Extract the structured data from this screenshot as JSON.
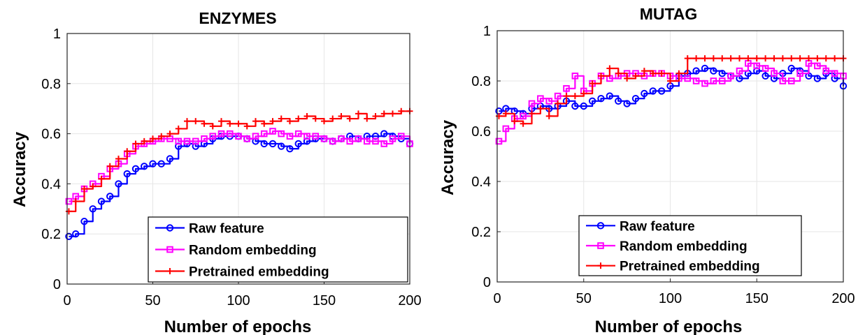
{
  "colors": {
    "raw": "#0000ff",
    "random": "#ff00ff",
    "pretrained": "#ff0000",
    "grid": "#e6e6e6",
    "axis": "#262626"
  },
  "chart_data": [
    {
      "type": "line",
      "title": "ENZYMES",
      "xlabel": "Number of epochs",
      "ylabel": "Accuracy",
      "xlim": [
        0,
        200
      ],
      "ylim": [
        0,
        1
      ],
      "xticks": [
        0,
        50,
        100,
        150,
        200
      ],
      "yticks": [
        0,
        0.2,
        0.4,
        0.6,
        0.8,
        1
      ],
      "ytick_labels": [
        "0",
        "0.2",
        "0.4",
        "0.6",
        "0.8",
        "1"
      ],
      "grid": true,
      "legend_position": "bottom-right",
      "x": [
        1,
        5,
        10,
        15,
        20,
        25,
        30,
        35,
        40,
        45,
        50,
        55,
        60,
        65,
        70,
        75,
        80,
        85,
        90,
        95,
        100,
        105,
        110,
        115,
        120,
        125,
        130,
        135,
        140,
        145,
        150,
        155,
        160,
        165,
        170,
        175,
        180,
        185,
        190,
        195,
        200
      ],
      "series": [
        {
          "name": "Raw feature",
          "marker": "o",
          "color_key": "raw",
          "values": [
            0.19,
            0.2,
            0.25,
            0.3,
            0.33,
            0.35,
            0.4,
            0.44,
            0.46,
            0.47,
            0.48,
            0.48,
            0.5,
            0.55,
            0.56,
            0.55,
            0.56,
            0.58,
            0.59,
            0.59,
            0.59,
            0.58,
            0.57,
            0.56,
            0.56,
            0.55,
            0.54,
            0.56,
            0.57,
            0.58,
            0.58,
            0.57,
            0.58,
            0.59,
            0.58,
            0.59,
            0.59,
            0.6,
            0.59,
            0.58,
            0.56
          ]
        },
        {
          "name": "Random embedding",
          "marker": "s",
          "color_key": "random",
          "values": [
            0.33,
            0.35,
            0.38,
            0.4,
            0.43,
            0.46,
            0.48,
            0.52,
            0.55,
            0.56,
            0.57,
            0.58,
            0.58,
            0.57,
            0.57,
            0.57,
            0.58,
            0.59,
            0.6,
            0.6,
            0.59,
            0.58,
            0.59,
            0.6,
            0.61,
            0.6,
            0.59,
            0.6,
            0.59,
            0.59,
            0.58,
            0.57,
            0.58,
            0.57,
            0.58,
            0.57,
            0.57,
            0.56,
            0.58,
            0.59,
            0.56
          ]
        },
        {
          "name": "Pretrained embedding",
          "marker": "+",
          "color_key": "pretrained",
          "values": [
            0.29,
            0.33,
            0.38,
            0.39,
            0.42,
            0.47,
            0.5,
            0.53,
            0.56,
            0.57,
            0.58,
            0.59,
            0.6,
            0.62,
            0.65,
            0.65,
            0.64,
            0.63,
            0.65,
            0.64,
            0.64,
            0.63,
            0.65,
            0.64,
            0.65,
            0.66,
            0.65,
            0.66,
            0.67,
            0.66,
            0.65,
            0.66,
            0.67,
            0.66,
            0.68,
            0.66,
            0.67,
            0.68,
            0.68,
            0.69,
            0.69
          ]
        }
      ]
    },
    {
      "type": "line",
      "title": "MUTAG",
      "xlabel": "Number of epochs",
      "ylabel": "Accuracy",
      "xlim": [
        0,
        200
      ],
      "ylim": [
        0,
        1
      ],
      "xticks": [
        0,
        50,
        100,
        150,
        200
      ],
      "yticks": [
        0,
        0.2,
        0.4,
        0.6,
        0.8,
        1
      ],
      "ytick_labels": [
        "0",
        "0.2",
        "0.4",
        "0.6",
        "0.8",
        "1"
      ],
      "grid": true,
      "legend_position": "bottom-right",
      "x": [
        1,
        5,
        10,
        15,
        20,
        25,
        30,
        35,
        40,
        45,
        50,
        55,
        60,
        65,
        70,
        75,
        80,
        85,
        90,
        95,
        100,
        105,
        110,
        115,
        120,
        125,
        130,
        135,
        140,
        145,
        150,
        155,
        160,
        165,
        170,
        175,
        180,
        185,
        190,
        195,
        200
      ],
      "series": [
        {
          "name": "Raw feature",
          "marker": "o",
          "color_key": "raw",
          "values": [
            0.68,
            0.69,
            0.68,
            0.67,
            0.69,
            0.7,
            0.69,
            0.7,
            0.72,
            0.7,
            0.7,
            0.72,
            0.73,
            0.74,
            0.72,
            0.71,
            0.73,
            0.75,
            0.76,
            0.76,
            0.78,
            0.82,
            0.83,
            0.84,
            0.85,
            0.84,
            0.83,
            0.82,
            0.81,
            0.83,
            0.84,
            0.82,
            0.81,
            0.83,
            0.85,
            0.84,
            0.82,
            0.81,
            0.83,
            0.81,
            0.78
          ]
        },
        {
          "name": "Random embedding",
          "marker": "s",
          "color_key": "random",
          "values": [
            0.56,
            0.61,
            0.65,
            0.66,
            0.71,
            0.73,
            0.72,
            0.74,
            0.77,
            0.82,
            0.76,
            0.79,
            0.82,
            0.81,
            0.82,
            0.83,
            0.83,
            0.82,
            0.83,
            0.83,
            0.82,
            0.81,
            0.81,
            0.8,
            0.79,
            0.8,
            0.8,
            0.82,
            0.84,
            0.87,
            0.86,
            0.85,
            0.83,
            0.8,
            0.8,
            0.83,
            0.87,
            0.86,
            0.84,
            0.83,
            0.82
          ]
        },
        {
          "name": "Pretrained embedding",
          "marker": "+",
          "color_key": "pretrained",
          "values": [
            0.66,
            0.67,
            0.64,
            0.63,
            0.67,
            0.69,
            0.66,
            0.71,
            0.74,
            0.74,
            0.75,
            0.79,
            0.82,
            0.85,
            0.83,
            0.81,
            0.82,
            0.84,
            0.83,
            0.83,
            0.8,
            0.83,
            0.89,
            0.89,
            0.89,
            0.89,
            0.89,
            0.89,
            0.89,
            0.89,
            0.89,
            0.89,
            0.89,
            0.89,
            0.89,
            0.89,
            0.89,
            0.89,
            0.89,
            0.89,
            0.89
          ]
        }
      ]
    }
  ]
}
